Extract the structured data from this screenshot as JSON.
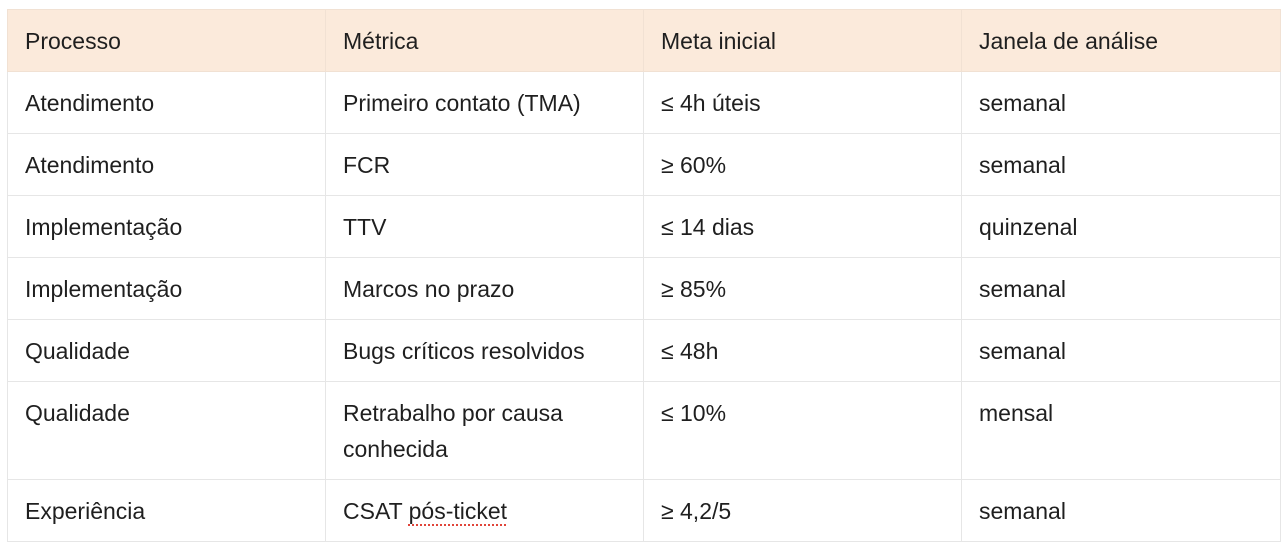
{
  "table": {
    "headers": [
      "Processo",
      "Métrica",
      "Meta inicial",
      "Janela de análise"
    ],
    "rows": [
      {
        "processo": "Atendimento",
        "metrica": "Primeiro contato (TMA)",
        "meta": "≤ 4h úteis",
        "janela": "semanal"
      },
      {
        "processo": "Atendimento",
        "metrica": "FCR",
        "meta": "≥ 60%",
        "janela": "semanal"
      },
      {
        "processo": "Implementação",
        "metrica": "TTV",
        "meta": "≤ 14 dias",
        "janela": "quinzenal"
      },
      {
        "processo": "Implementação",
        "metrica": "Marcos no prazo",
        "meta": "≥ 85%",
        "janela": "semanal"
      },
      {
        "processo": "Qualidade",
        "metrica": "Bugs críticos resolvidos",
        "meta": "≤ 48h",
        "janela": "semanal"
      },
      {
        "processo": "Qualidade",
        "metrica": "Retrabalho por causa conhecida",
        "meta": "≤ 10%",
        "janela": "mensal"
      },
      {
        "processo": "Experiência",
        "metrica_prefix": "CSAT ",
        "metrica_flagged": "pós-ticket",
        "meta": "≥ 4,2/5",
        "janela": "semanal"
      }
    ]
  },
  "colors": {
    "header_background": "#fbeadb",
    "border": "#e6e6e6",
    "spellcheck_underline": "#e0453a"
  }
}
